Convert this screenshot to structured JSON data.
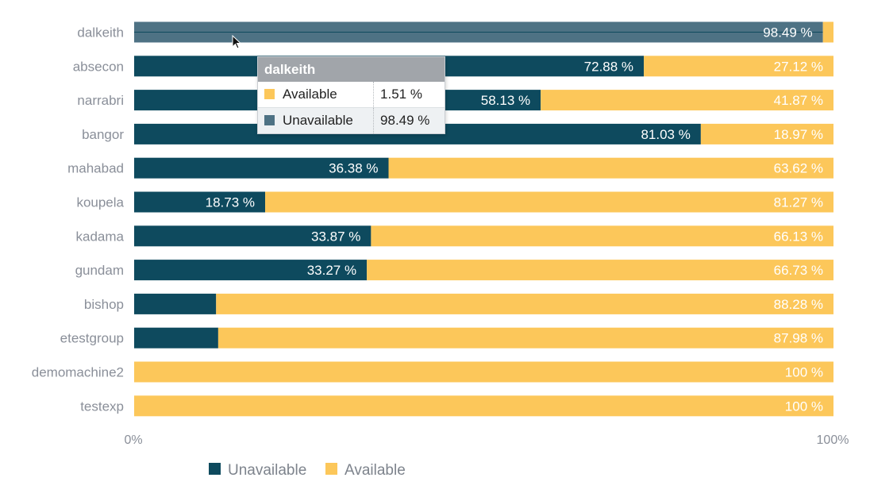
{
  "colors": {
    "unavailable": "#0e4a5e",
    "available": "#fcc75a",
    "hover_unavailable": "#4e7284"
  },
  "chart_data": {
    "type": "bar",
    "orientation": "horizontal",
    "stacked": true,
    "categories": [
      "dalkeith",
      "absecon",
      "narrabri",
      "bangor",
      "mahabad",
      "koupela",
      "kadama",
      "gundam",
      "bishop",
      "etestgroup",
      "demomachine2",
      "testexp"
    ],
    "series": [
      {
        "name": "Unavailable",
        "values": [
          98.49,
          72.88,
          58.13,
          81.03,
          36.38,
          18.73,
          33.87,
          33.27,
          11.72,
          12.02,
          0,
          0
        ],
        "labels": [
          "98.49 %",
          "72.88 %",
          "58.13 %",
          "81.03 %",
          "36.38 %",
          "18.73 %",
          "33.87 %",
          "33.27 %",
          "",
          "",
          "",
          ""
        ]
      },
      {
        "name": "Available",
        "values": [
          1.51,
          27.12,
          41.87,
          18.97,
          63.62,
          81.27,
          66.13,
          66.73,
          88.28,
          87.98,
          100,
          100
        ],
        "labels": [
          "",
          "27.12 %",
          "41.87 %",
          "18.97 %",
          "63.62 %",
          "81.27 %",
          "66.13 %",
          "66.73 %",
          "88.28 %",
          "87.98 %",
          "100 %",
          "100 %"
        ]
      }
    ],
    "xlim": [
      0,
      100
    ],
    "x_ticks": [
      "0%",
      "100%"
    ],
    "legend": {
      "placement": "bottom-left",
      "entries": [
        "Unavailable",
        "Available"
      ]
    },
    "hovered_category": "dalkeith"
  },
  "tooltip": {
    "title": "dalkeith",
    "rows": [
      {
        "name": "Available",
        "value": "1.51 %"
      },
      {
        "name": "Unavailable",
        "value": "98.49 %"
      }
    ]
  }
}
